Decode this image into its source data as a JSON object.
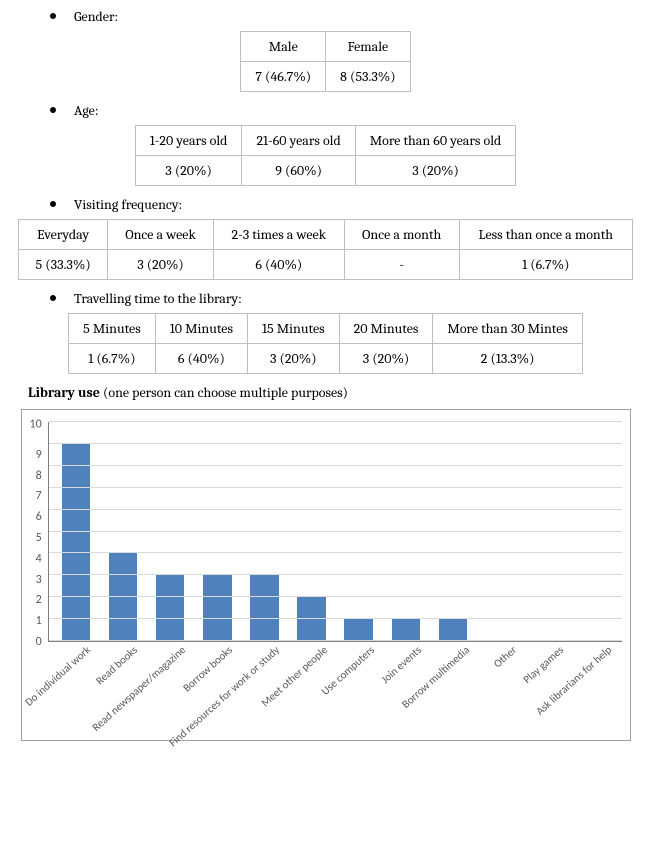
{
  "gender": {
    "label": "Gender:",
    "columns": [
      "Male",
      "Female"
    ],
    "rows": [
      [
        "7 (46.7%)",
        "8 (53.3%)"
      ]
    ]
  },
  "age": {
    "label": "Age:",
    "columns": [
      "1-20 years old",
      "21-60 years old",
      "More than 60 years old"
    ],
    "rows": [
      [
        "3 (20%)",
        "9 (60%)",
        "3 (20%)"
      ]
    ]
  },
  "visiting": {
    "label": "Visiting frequency:",
    "columns": [
      "Everyday",
      "Once a week",
      "2-3 times a week",
      "Once a month",
      "Less than once a month"
    ],
    "rows": [
      [
        "5 (33.3%)",
        "3 (20%)",
        "6 (40%)",
        "-",
        "1 (6.7%)"
      ]
    ]
  },
  "travel": {
    "label": "Travelling time to the library:",
    "columns": [
      "5 Minutes",
      "10 Minutes",
      "15 Minutes",
      "20 Minutes",
      "More than 30 Mintes"
    ],
    "rows": [
      [
        "1 (6.7%)",
        "6 (40%)",
        "3 (20%)",
        "3 (20%)",
        "2 (13.3%)"
      ]
    ]
  },
  "library_use": {
    "heading_bold": "Library use",
    "heading_rest": " (one person can choose multiple purposes)",
    "chart": {
      "type": "bar",
      "ylim": [
        0,
        10
      ],
      "ytick_step": 1,
      "categories": [
        "Do individual work",
        "Read books",
        "Read newspaper/magazine",
        "Borrow books",
        "Find resources for work or study",
        "Meet other people",
        "Use computers",
        "Join events",
        "Borrow multimedia",
        "Other",
        "Play games",
        "Ask librarians for help"
      ],
      "values": [
        9,
        4,
        3,
        3,
        3,
        2,
        1,
        1,
        1,
        0,
        0,
        0
      ],
      "bar_color": "#4f81bd",
      "grid_color": "#d9d9d9",
      "axis_color": "#808080",
      "background_color": "#ffffff",
      "label_fontsize": 11,
      "tick_fontsize": 12,
      "bar_width": 0.6,
      "label_rotation_deg": -42
    }
  }
}
